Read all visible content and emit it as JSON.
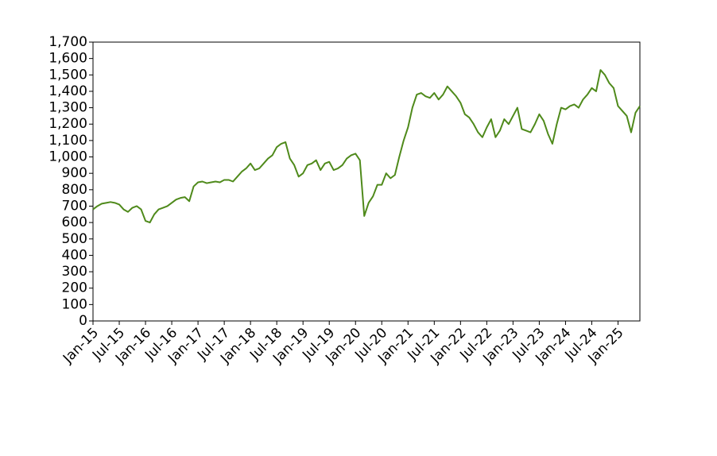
{
  "chart_data": {
    "type": "line",
    "x": [
      "2015-01",
      "2015-02",
      "2015-03",
      "2015-04",
      "2015-05",
      "2015-06",
      "2015-07",
      "2015-08",
      "2015-09",
      "2015-10",
      "2015-11",
      "2015-12",
      "2016-01",
      "2016-02",
      "2016-03",
      "2016-04",
      "2016-05",
      "2016-06",
      "2016-07",
      "2016-08",
      "2016-09",
      "2016-10",
      "2016-11",
      "2016-12",
      "2017-01",
      "2017-02",
      "2017-03",
      "2017-04",
      "2017-05",
      "2017-06",
      "2017-07",
      "2017-08",
      "2017-09",
      "2017-10",
      "2017-11",
      "2017-12",
      "2018-01",
      "2018-02",
      "2018-03",
      "2018-04",
      "2018-05",
      "2018-06",
      "2018-07",
      "2018-08",
      "2018-09",
      "2018-10",
      "2018-11",
      "2018-12",
      "2019-01",
      "2019-02",
      "2019-03",
      "2019-04",
      "2019-05",
      "2019-06",
      "2019-07",
      "2019-08",
      "2019-09",
      "2019-10",
      "2019-11",
      "2019-12",
      "2020-01",
      "2020-02",
      "2020-03",
      "2020-04",
      "2020-05",
      "2020-06",
      "2020-07",
      "2020-08",
      "2020-09",
      "2020-10",
      "2020-11",
      "2020-12",
      "2021-01",
      "2021-02",
      "2021-03",
      "2021-04",
      "2021-05",
      "2021-06",
      "2021-07",
      "2021-08",
      "2021-09",
      "2021-10",
      "2021-11",
      "2021-12",
      "2022-01",
      "2022-02",
      "2022-03",
      "2022-04",
      "2022-05",
      "2022-06",
      "2022-07",
      "2022-08",
      "2022-09",
      "2022-10",
      "2022-11",
      "2022-12",
      "2023-01",
      "2023-02",
      "2023-03",
      "2023-04",
      "2023-05",
      "2023-06",
      "2023-07",
      "2023-08",
      "2023-09",
      "2023-10",
      "2023-11",
      "2023-12",
      "2024-01",
      "2024-02",
      "2024-03",
      "2024-04",
      "2024-05",
      "2024-06",
      "2024-07",
      "2024-08",
      "2024-09",
      "2024-10",
      "2024-11",
      "2024-12",
      "2025-01",
      "2025-02",
      "2025-03",
      "2025-04",
      "2025-05",
      "2025-06"
    ],
    "values": [
      680,
      700,
      715,
      720,
      725,
      720,
      710,
      680,
      665,
      690,
      700,
      680,
      610,
      600,
      650,
      680,
      690,
      700,
      720,
      740,
      750,
      755,
      730,
      820,
      845,
      850,
      840,
      845,
      850,
      845,
      860,
      860,
      850,
      880,
      910,
      930,
      960,
      920,
      930,
      960,
      990,
      1010,
      1060,
      1080,
      1090,
      990,
      950,
      880,
      900,
      950,
      960,
      980,
      920,
      960,
      970,
      920,
      930,
      950,
      990,
      1010,
      1020,
      980,
      640,
      720,
      760,
      830,
      830,
      900,
      870,
      890,
      1000,
      1100,
      1180,
      1300,
      1380,
      1390,
      1370,
      1360,
      1390,
      1350,
      1380,
      1430,
      1400,
      1370,
      1330,
      1260,
      1240,
      1200,
      1150,
      1120,
      1180,
      1230,
      1120,
      1160,
      1230,
      1200,
      1250,
      1300,
      1170,
      1160,
      1150,
      1200,
      1260,
      1220,
      1140,
      1080,
      1200,
      1300,
      1290,
      1310,
      1320,
      1300,
      1350,
      1380,
      1420,
      1400,
      1530,
      1500,
      1450,
      1420,
      1310,
      1280,
      1250,
      1150,
      1270,
      1310
    ],
    "color": "#4f8a1b",
    "xlim": [
      "2015-01",
      "2025-06"
    ],
    "xticks": [
      {
        "value": "2015-01",
        "label": "Jan-15"
      },
      {
        "value": "2015-07",
        "label": "Jul-15"
      },
      {
        "value": "2016-01",
        "label": "Jan-16"
      },
      {
        "value": "2016-07",
        "label": "Jul-16"
      },
      {
        "value": "2017-01",
        "label": "Jan-17"
      },
      {
        "value": "2017-07",
        "label": "Jul-17"
      },
      {
        "value": "2018-01",
        "label": "Jan-18"
      },
      {
        "value": "2018-07",
        "label": "Jul-18"
      },
      {
        "value": "2019-01",
        "label": "Jan-19"
      },
      {
        "value": "2019-07",
        "label": "Jul-19"
      },
      {
        "value": "2020-01",
        "label": "Jan-20"
      },
      {
        "value": "2020-07",
        "label": "Jul-20"
      },
      {
        "value": "2021-01",
        "label": "Jan-21"
      },
      {
        "value": "2021-07",
        "label": "Jul-21"
      },
      {
        "value": "2022-01",
        "label": "Jan-22"
      },
      {
        "value": "2022-07",
        "label": "Jul-22"
      },
      {
        "value": "2023-01",
        "label": "Jan-23"
      },
      {
        "value": "2023-07",
        "label": "Jul-23"
      },
      {
        "value": "2024-01",
        "label": "Jan-24"
      },
      {
        "value": "2024-07",
        "label": "Jul-24"
      },
      {
        "value": "2025-01",
        "label": "Jan-25"
      }
    ],
    "ylim": [
      0,
      1700
    ],
    "yticks": [
      0,
      100,
      200,
      300,
      400,
      500,
      600,
      700,
      800,
      900,
      {
        "value": 1000,
        "label": "1,000"
      },
      {
        "value": 1100,
        "label": "1,100"
      },
      {
        "value": 1200,
        "label": "1,200"
      },
      {
        "value": 1300,
        "label": "1,300"
      },
      {
        "value": 1400,
        "label": "1,400"
      },
      {
        "value": 1500,
        "label": "1,500"
      },
      {
        "value": 1600,
        "label": "1,600"
      },
      {
        "value": 1700,
        "label": "1,700"
      }
    ],
    "grid": false
  }
}
